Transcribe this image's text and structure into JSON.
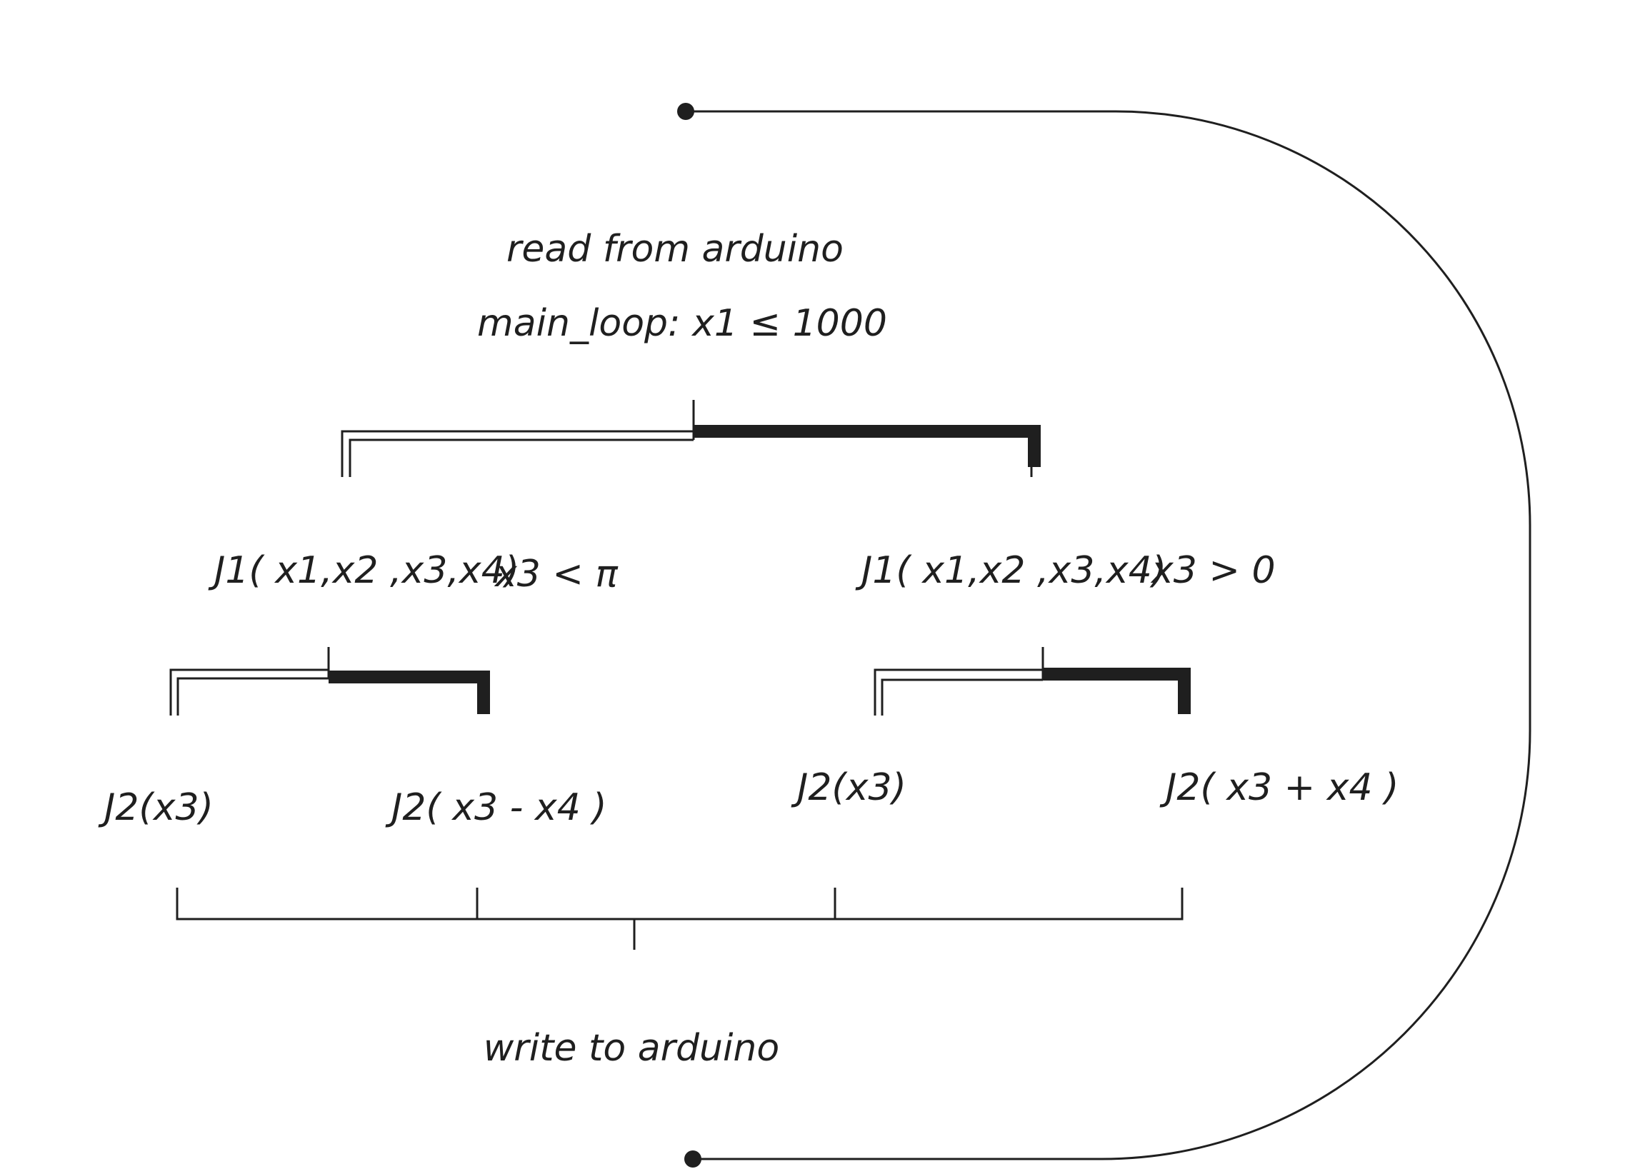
{
  "diagram": {
    "top_label": "read from arduino",
    "loop_label": "main_loop: x1 ≤ 1000",
    "left_branch": {
      "function": "J1( x1,x2 ,x3,x4)",
      "condition": "x3 < π",
      "leaf_left": "J2(x3)",
      "leaf_right": "J2( x3 - x4 )"
    },
    "right_branch": {
      "function": "J1( x1,x2 ,x3,x4)",
      "condition": "x3 > 0",
      "leaf_left": "J2(x3)",
      "leaf_right": "J2( x3 + x4 )"
    },
    "bottom_label": "write to arduino",
    "stroke_color": "#1f1f1f"
  }
}
